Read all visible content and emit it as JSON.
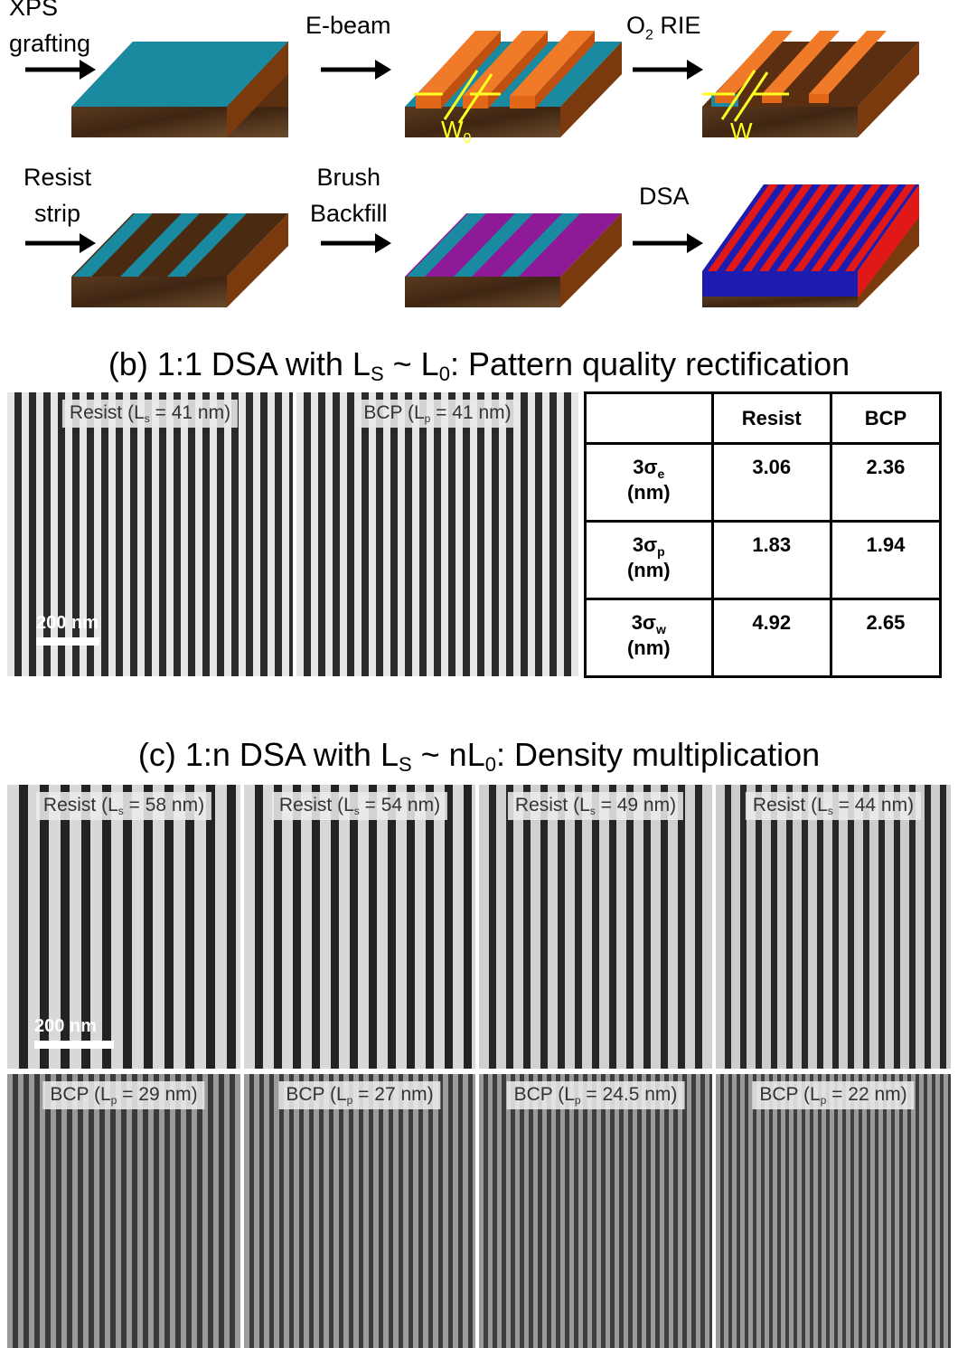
{
  "process": {
    "steps": [
      {
        "line1": "XPS",
        "line2": "grafting"
      },
      {
        "line1": "E-beam",
        "line2": ""
      },
      {
        "line1": "O",
        "sub": "2",
        "line1b": " RIE"
      },
      {
        "line1": "Resist",
        "line2": "strip"
      },
      {
        "line1": "Brush",
        "line2": "Backfill"
      },
      {
        "line1": "DSA",
        "line2": ""
      }
    ],
    "dim_w0_main": "W",
    "dim_w0_sub": "0",
    "dim_w": "W",
    "colors": {
      "substrate_top": "#1a8aa0",
      "resist": "#e06818",
      "resist_dark": "#5a2e10",
      "brush": "#8e1a98",
      "blue": "#1c1cb0",
      "red": "#e01818",
      "wafer": "#4a2c14",
      "dim": "#ffff20"
    }
  },
  "section_b": {
    "title_pre": "(b) 1:1 DSA with L",
    "title_sub1": "S",
    "title_mid": " ~ L",
    "title_sub2": "0",
    "title_post": ": Pattern quality rectification",
    "images": [
      {
        "pre": "Resist (L",
        "sub": "s",
        "post": " = 41 nm)"
      },
      {
        "pre": "BCP (L",
        "sub": "p",
        "post": " = 41 nm)"
      }
    ],
    "scale_label": "200 nm",
    "table": {
      "headers": [
        "",
        "Resist",
        "BCP"
      ],
      "rows": [
        {
          "sym": "3σ",
          "sub": "e",
          "unit": "(nm)",
          "resist": "3.06",
          "bcp": "2.36"
        },
        {
          "sym": "3σ",
          "sub": "p",
          "unit": "(nm)",
          "resist": "1.83",
          "bcp": "1.94"
        },
        {
          "sym": "3σ",
          "sub": "w",
          "unit": "(nm)",
          "resist": "4.92",
          "bcp": "2.65"
        }
      ]
    }
  },
  "section_c": {
    "title_pre": "(c) 1:n DSA with L",
    "title_sub1": "S",
    "title_mid": " ~ nL",
    "title_sub2": "0",
    "title_post": ": Density multiplication",
    "scale_label": "200 nm",
    "resist_images": [
      {
        "pre": "Resist (L",
        "sub": "s",
        "post": " = 58 nm)"
      },
      {
        "pre": "Resist (L",
        "sub": "s",
        "post": " = 54 nm)"
      },
      {
        "pre": "Resist (L",
        "sub": "s",
        "post": " = 49 nm)"
      },
      {
        "pre": "Resist (L",
        "sub": "s",
        "post": " = 44 nm)"
      }
    ],
    "bcp_images": [
      {
        "pre": "BCP (L",
        "sub": "p",
        "post": " = 29 nm)"
      },
      {
        "pre": "BCP (L",
        "sub": "p",
        "post": " = 27 nm)"
      },
      {
        "pre": "BCP (L",
        "sub": "p",
        "post": " = 24.5 nm)"
      },
      {
        "pre": "BCP (L",
        "sub": "p",
        "post": " = 22 nm)"
      }
    ]
  }
}
